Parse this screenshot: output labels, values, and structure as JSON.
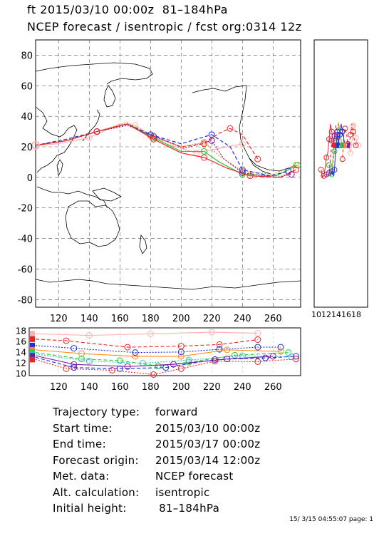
{
  "header": {
    "line1": "ft 2015/03/10 00:00z  81–184hPa",
    "line2": "NCEP forecast / isentropic / fcst org:0314 12z"
  },
  "map": {
    "lon_range": [
      105,
      278
    ],
    "lat_range": [
      -85,
      90
    ],
    "x_ticks": [
      "120",
      "140",
      "160",
      "180",
      "200",
      "220",
      "240",
      "260"
    ],
    "y_ticks": [
      "80",
      "60",
      "40",
      "20",
      "0",
      "-20",
      "-40",
      "-60",
      "-80"
    ],
    "grid": "dashed"
  },
  "side_panel": {
    "x_ticks": [
      "10",
      "12",
      "14",
      "16",
      "18"
    ],
    "x_tick_label": "1012141618"
  },
  "height_panel": {
    "y_ticks": [
      "18",
      "16",
      "14",
      "12",
      "10"
    ],
    "x_ticks": [
      "120",
      "140",
      "160",
      "180",
      "200",
      "220",
      "240",
      "260"
    ]
  },
  "info": {
    "rows": [
      {
        "label": "Trajectory type:",
        "value": "forward"
      },
      {
        "label": "Start time:",
        "value": "2015/03/10 00:00z"
      },
      {
        "label": "End time:",
        "value": "2015/03/17 00:00z"
      },
      {
        "label": "Forecast origin:",
        "value": "2015/03/14 12:00z"
      },
      {
        "label": "Met. data:",
        "value": "NCEP forecast"
      },
      {
        "label": "Alt. calculation:",
        "value": "isentropic"
      },
      {
        "label": "Initial height:",
        "value": " 81–184hPa"
      }
    ]
  },
  "footer": "15/ 3/15 04:55:07 page: 1",
  "colors": {
    "red": "#ee2222",
    "orange": "#ff8a1a",
    "green": "#22cc33",
    "cyan": "#22c8cc",
    "blue": "#1a2ee6",
    "purple": "#8a1aa0",
    "pink": "#ffb0b0"
  },
  "trajectories": [
    {
      "color": "#ffb0b0",
      "start_height": 17.5,
      "lonlat": [
        [
          105,
          21
        ],
        [
          120,
          22
        ],
        [
          140,
          26
        ],
        [
          160,
          35
        ],
        [
          170,
          34
        ],
        [
          190,
          22
        ],
        [
          210,
          16
        ],
        [
          230,
          20
        ],
        [
          240,
          22
        ]
      ]
    },
    {
      "color": "#ee2222",
      "start_height": 16.5,
      "lonlat": [
        [
          105,
          21
        ],
        [
          125,
          24
        ],
        [
          145,
          30
        ],
        [
          165,
          35
        ],
        [
          180,
          28
        ],
        [
          200,
          20
        ],
        [
          215,
          22
        ],
        [
          225,
          29
        ],
        [
          232,
          32
        ],
        [
          240,
          28
        ],
        [
          250,
          12
        ]
      ]
    },
    {
      "color": "#ff8a1a",
      "start_height": 14.5,
      "lonlat": [
        [
          105,
          21
        ],
        [
          125,
          24
        ],
        [
          145,
          30
        ],
        [
          165,
          36
        ],
        [
          180,
          27
        ],
        [
          200,
          20
        ],
        [
          215,
          23
        ],
        [
          225,
          14
        ],
        [
          240,
          4
        ],
        [
          260,
          2
        ],
        [
          275,
          8
        ]
      ]
    },
    {
      "color": "#22cc33",
      "start_height": 14.0,
      "lonlat": [
        [
          105,
          21
        ],
        [
          125,
          24
        ],
        [
          145,
          30
        ],
        [
          165,
          35
        ],
        [
          182,
          26
        ],
        [
          200,
          17
        ],
        [
          215,
          17
        ],
        [
          225,
          10
        ],
        [
          240,
          2
        ],
        [
          262,
          1
        ],
        [
          276,
          8
        ]
      ]
    },
    {
      "color": "#1a2ee6",
      "start_height": 15.0,
      "lonlat": [
        [
          105,
          21
        ],
        [
          125,
          25
        ],
        [
          145,
          30
        ],
        [
          165,
          35
        ],
        [
          180,
          28
        ],
        [
          200,
          22
        ],
        [
          220,
          28
        ],
        [
          232,
          20
        ],
        [
          240,
          5
        ],
        [
          258,
          1
        ],
        [
          270,
          4
        ]
      ]
    },
    {
      "color": "#8a1aa0",
      "start_height": 13.5,
      "lonlat": [
        [
          105,
          21
        ],
        [
          125,
          24
        ],
        [
          145,
          30
        ],
        [
          165,
          34
        ],
        [
          182,
          27
        ],
        [
          202,
          19
        ],
        [
          220,
          24
        ],
        [
          228,
          12
        ],
        [
          240,
          3
        ],
        [
          262,
          0
        ],
        [
          272,
          2
        ]
      ]
    },
    {
      "color": "#ee2222",
      "start_height": 13.0,
      "lonlat": [
        [
          105,
          21
        ],
        [
          125,
          24
        ],
        [
          145,
          30
        ],
        [
          165,
          35
        ],
        [
          182,
          25
        ],
        [
          200,
          16
        ],
        [
          215,
          13
        ],
        [
          230,
          6
        ],
        [
          245,
          1
        ],
        [
          265,
          0
        ],
        [
          275,
          5
        ]
      ]
    }
  ],
  "height_traces": [
    {
      "color": "#ffb0b0",
      "values": [
        [
          105,
          17.5
        ],
        [
          140,
          17.2
        ],
        [
          180,
          17.5
        ],
        [
          220,
          17.8
        ],
        [
          250,
          17.6
        ]
      ]
    },
    {
      "color": "#ee2222",
      "values": [
        [
          105,
          16.5
        ],
        [
          125,
          16.2
        ],
        [
          165,
          15.0
        ],
        [
          200,
          15.2
        ],
        [
          225,
          15.5
        ],
        [
          250,
          16.4
        ]
      ]
    },
    {
      "color": "#1a2ee6",
      "values": [
        [
          105,
          15.3
        ],
        [
          130,
          14.8
        ],
        [
          170,
          14.0
        ],
        [
          200,
          14.1
        ],
        [
          225,
          14.6
        ],
        [
          250,
          15.0
        ],
        [
          265,
          15.0
        ]
      ]
    },
    {
      "color": "#ff8a1a",
      "values": [
        [
          105,
          14.5
        ],
        [
          135,
          13.8
        ],
        [
          170,
          13.3
        ],
        [
          200,
          13.3
        ],
        [
          230,
          14.5
        ],
        [
          265,
          14.2
        ]
      ]
    },
    {
      "color": "#22cc33",
      "values": [
        [
          105,
          14.0
        ],
        [
          135,
          12.8
        ],
        [
          160,
          12.5
        ],
        [
          185,
          11.5
        ],
        [
          205,
          12.2
        ],
        [
          235,
          13.5
        ],
        [
          270,
          14.0
        ]
      ]
    },
    {
      "color": "#22c8cc",
      "values": [
        [
          105,
          13.7
        ],
        [
          140,
          12.4
        ],
        [
          175,
          12.0
        ],
        [
          205,
          12.6
        ],
        [
          240,
          13.4
        ],
        [
          272,
          13.2
        ]
      ]
    },
    {
      "color": "#8a1aa0",
      "values": [
        [
          105,
          13.4
        ],
        [
          130,
          11.8
        ],
        [
          165,
          11.4
        ],
        [
          195,
          11.8
        ],
        [
          230,
          12.8
        ],
        [
          260,
          13.3
        ]
      ]
    },
    {
      "color": "#1a2ee6",
      "values": [
        [
          105,
          13.1
        ],
        [
          130,
          11.2
        ],
        [
          160,
          11.0
        ],
        [
          190,
          11.2
        ],
        [
          222,
          12.7
        ],
        [
          255,
          13.0
        ],
        [
          275,
          13.3
        ]
      ]
    },
    {
      "color": "#ee2222",
      "values": [
        [
          105,
          12.7
        ],
        [
          125,
          11.0
        ],
        [
          155,
          10.7
        ],
        [
          182,
          9.9
        ],
        [
          200,
          11.0
        ],
        [
          222,
          12.4
        ],
        [
          250,
          12.3
        ],
        [
          275,
          12.8
        ]
      ]
    }
  ]
}
